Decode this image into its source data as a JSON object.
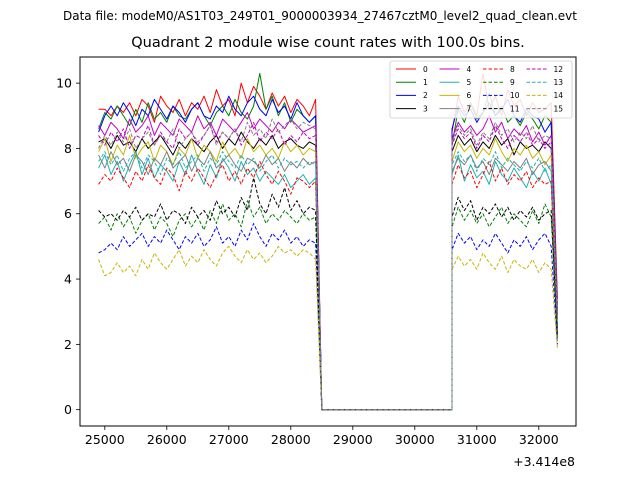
{
  "chart_data": {
    "type": "line",
    "suptitle": "Data file: modeM0/AS1T03_249T01_9000003934_27467cztM0_level2_quad_clean.evt",
    "title": "Quadrant 2 module wise count rates with 100.0s bins.",
    "xlabel": "",
    "ylabel": "",
    "x_offset_label": "+3.414e8",
    "xlim": [
      24600,
      32600
    ],
    "ylim": [
      -0.5,
      10.8
    ],
    "xticks": [
      "25000",
      "26000",
      "27000",
      "28000",
      "29000",
      "30000",
      "31000",
      "32000"
    ],
    "yticks": [
      "0",
      "2",
      "4",
      "6",
      "8",
      "10"
    ],
    "grid": false,
    "legend_position": "top-right",
    "segments": [
      {
        "x_start": 24900,
        "x_end": 28400,
        "n": 36
      },
      {
        "x_start": 30600,
        "x_end": 32300,
        "n": 18
      }
    ],
    "gap": {
      "x_start": 28500,
      "x_end": 30600,
      "value": 0
    },
    "series": [
      {
        "name": "0",
        "color": "#ff0000",
        "dash": "solid",
        "seg1": [
          9.2,
          9.2,
          9.0,
          9.3,
          9.1,
          9.4,
          9.0,
          9.5,
          9.3,
          8.8,
          9.6,
          9.3,
          9.1,
          9.5,
          9.0,
          9.4,
          9.2,
          9.6,
          9.1,
          9.8,
          9.3,
          9.5,
          9.0,
          10.0,
          9.4,
          9.9,
          9.6,
          9.2,
          9.7,
          9.3,
          9.6,
          9.1,
          9.5,
          9.3,
          9.0,
          9.5
        ],
        "seg2": [
          8.5,
          9.6,
          9.1,
          9.4,
          9.0,
          10.3,
          9.2,
          9.6,
          9.0,
          9.8,
          9.3,
          9.5,
          9.0,
          9.4,
          9.1,
          9.2,
          9.4,
          3.4
        ]
      },
      {
        "name": "1",
        "color": "#008000",
        "dash": "solid",
        "seg1": [
          8.6,
          9.1,
          8.9,
          9.3,
          9.0,
          8.7,
          9.2,
          8.8,
          9.4,
          8.9,
          9.1,
          8.8,
          9.3,
          9.0,
          8.9,
          9.2,
          9.4,
          9.0,
          8.7,
          9.1,
          9.3,
          9.0,
          9.5,
          9.1,
          8.9,
          9.3,
          10.3,
          9.2,
          9.6,
          9.0,
          9.4,
          8.8,
          9.2,
          9.0,
          8.8,
          9.0
        ],
        "seg2": [
          8.1,
          9.2,
          8.8,
          9.4,
          8.9,
          9.1,
          9.7,
          9.0,
          9.3,
          8.8,
          9.0,
          8.7,
          9.1,
          8.9,
          8.6,
          9.0,
          8.8,
          3.2
        ]
      },
      {
        "name": "2",
        "color": "#0000ff",
        "dash": "solid",
        "seg1": [
          8.5,
          9.0,
          9.3,
          9.0,
          9.4,
          9.1,
          8.7,
          9.2,
          9.0,
          9.5,
          9.2,
          8.9,
          9.3,
          9.1,
          8.8,
          9.2,
          9.4,
          9.0,
          8.9,
          9.3,
          9.1,
          9.6,
          9.2,
          9.0,
          9.4,
          9.6,
          9.2,
          9.0,
          9.5,
          9.1,
          9.3,
          8.9,
          9.4,
          9.0,
          8.8,
          9.0
        ],
        "seg2": [
          8.6,
          9.3,
          9.0,
          9.2,
          8.8,
          9.1,
          9.4,
          9.0,
          9.2,
          9.5,
          9.0,
          8.8,
          9.2,
          9.0,
          8.9,
          8.5,
          8.8,
          3.0
        ]
      },
      {
        "name": "3",
        "color": "#000000",
        "dash": "solid",
        "seg1": [
          8.2,
          8.3,
          8.0,
          8.4,
          8.1,
          8.2,
          7.9,
          8.3,
          8.0,
          8.2,
          8.4,
          8.1,
          7.8,
          8.2,
          8.0,
          8.3,
          8.1,
          7.9,
          8.2,
          8.4,
          8.0,
          8.3,
          8.1,
          8.5,
          8.2,
          8.0,
          8.3,
          8.1,
          8.4,
          8.0,
          8.2,
          8.3,
          8.1,
          8.0,
          8.2,
          8.1
        ],
        "seg2": [
          7.9,
          8.4,
          8.1,
          8.3,
          7.9,
          8.2,
          8.0,
          8.4,
          8.1,
          8.3,
          7.8,
          8.2,
          8.0,
          8.1,
          7.9,
          8.2,
          8.0,
          2.6
        ]
      },
      {
        "name": "4",
        "color": "#c000c0",
        "dash": "solid",
        "seg1": [
          8.7,
          8.4,
          8.8,
          8.6,
          8.3,
          8.9,
          8.5,
          8.7,
          9.0,
          8.4,
          8.8,
          8.6,
          8.4,
          8.9,
          8.7,
          8.5,
          9.0,
          8.6,
          8.8,
          8.4,
          8.9,
          8.7,
          8.5,
          8.8,
          9.1,
          8.6,
          8.9,
          8.7,
          8.5,
          8.8,
          8.6,
          8.9,
          8.7,
          8.5,
          8.6,
          8.7
        ],
        "seg2": [
          8.3,
          8.8,
          8.5,
          8.7,
          8.4,
          8.6,
          9.0,
          8.5,
          8.8,
          8.3,
          8.6,
          8.4,
          8.7,
          8.2,
          8.5,
          8.1,
          8.4,
          2.9
        ]
      },
      {
        "name": "5",
        "color": "#20b0b0",
        "dash": "solid",
        "seg1": [
          7.4,
          7.8,
          7.2,
          7.6,
          7.0,
          7.5,
          7.9,
          7.2,
          7.7,
          7.1,
          7.5,
          7.3,
          7.0,
          7.6,
          7.2,
          7.8,
          7.3,
          6.9,
          7.5,
          7.1,
          7.7,
          7.4,
          7.0,
          7.6,
          7.2,
          7.4,
          7.0,
          7.3,
          7.1,
          6.9,
          7.2,
          6.8,
          7.0,
          7.2,
          6.9,
          7.1
        ],
        "seg2": [
          7.2,
          7.8,
          7.0,
          7.5,
          7.1,
          7.3,
          6.9,
          7.6,
          7.2,
          7.0,
          7.4,
          7.1,
          6.8,
          7.3,
          7.0,
          7.4,
          6.9,
          2.5
        ]
      },
      {
        "name": "6",
        "color": "#c8b400",
        "dash": "solid",
        "seg1": [
          7.9,
          8.3,
          7.6,
          8.1,
          7.8,
          8.4,
          7.7,
          8.0,
          8.2,
          7.6,
          8.1,
          7.9,
          7.5,
          8.0,
          7.8,
          8.3,
          7.7,
          8.1,
          7.9,
          7.6,
          8.2,
          7.8,
          8.0,
          7.7,
          8.3,
          7.9,
          8.1,
          7.8,
          8.0,
          7.7,
          8.2,
          7.9,
          8.1,
          7.8,
          8.0,
          7.9
        ],
        "seg2": [
          7.6,
          8.2,
          7.9,
          8.1,
          7.7,
          8.0,
          7.8,
          8.3,
          7.9,
          7.6,
          8.0,
          7.8,
          8.1,
          7.7,
          7.9,
          7.5,
          7.8,
          2.7
        ]
      },
      {
        "name": "7",
        "color": "#808080",
        "dash": "solid",
        "seg1": [
          7.8,
          7.4,
          7.9,
          7.5,
          7.7,
          7.3,
          7.8,
          7.6,
          7.2,
          7.7,
          7.5,
          7.9,
          7.4,
          7.6,
          7.8,
          7.3,
          7.7,
          7.5,
          7.9,
          7.4,
          7.6,
          7.8,
          7.5,
          7.3,
          7.7,
          7.6,
          7.4,
          7.8,
          7.5,
          7.7,
          7.3,
          7.6,
          7.4,
          7.7,
          7.5,
          7.6
        ],
        "seg2": [
          7.3,
          7.7,
          7.5,
          7.8,
          7.4,
          7.6,
          7.2,
          7.7,
          7.5,
          7.3,
          7.6,
          7.4,
          7.7,
          7.2,
          7.5,
          7.6,
          7.3,
          2.8
        ]
      },
      {
        "name": "8",
        "color": "#ff0000",
        "dash": "dashed",
        "seg1": [
          6.9,
          7.2,
          7.0,
          7.4,
          7.1,
          6.8,
          7.3,
          7.0,
          7.5,
          7.1,
          6.9,
          7.4,
          7.2,
          6.7,
          7.3,
          7.0,
          7.4,
          7.1,
          6.8,
          7.2,
          7.5,
          7.0,
          7.3,
          6.9,
          7.4,
          7.1,
          7.6,
          7.2,
          6.9,
          7.3,
          7.0,
          6.6,
          7.1,
          7.0,
          6.8,
          7.0
        ],
        "seg2": [
          6.9,
          7.5,
          7.1,
          7.3,
          6.8,
          7.2,
          7.6,
          7.0,
          7.4,
          6.9,
          7.2,
          7.0,
          7.3,
          6.8,
          7.1,
          6.9,
          7.0,
          2.4
        ]
      },
      {
        "name": "9",
        "color": "#008000",
        "dash": "dashed",
        "seg1": [
          5.7,
          5.9,
          5.5,
          6.0,
          5.6,
          5.9,
          5.4,
          5.8,
          6.0,
          5.5,
          5.9,
          5.7,
          5.3,
          5.8,
          6.0,
          5.6,
          5.9,
          5.5,
          6.1,
          5.7,
          6.3,
          5.8,
          6.0,
          5.6,
          6.4,
          5.9,
          6.2,
          5.7,
          6.0,
          5.8,
          6.1,
          5.9,
          5.7,
          6.0,
          5.8,
          5.9
        ],
        "seg2": [
          5.6,
          6.2,
          5.8,
          6.1,
          5.7,
          6.0,
          5.6,
          5.9,
          6.2,
          5.7,
          6.0,
          5.8,
          5.6,
          6.1,
          5.7,
          6.3,
          5.9,
          2.2
        ]
      },
      {
        "name": "10",
        "color": "#0000ff",
        "dash": "dashed",
        "seg1": [
          4.8,
          4.9,
          5.1,
          4.9,
          5.3,
          5.0,
          5.2,
          5.4,
          5.0,
          5.3,
          5.1,
          5.5,
          5.2,
          4.9,
          5.3,
          5.1,
          5.4,
          5.0,
          5.2,
          5.6,
          5.1,
          5.3,
          5.0,
          5.5,
          5.2,
          5.7,
          5.3,
          5.0,
          5.4,
          5.2,
          5.5,
          5.1,
          5.3,
          5.0,
          5.2,
          5.1
        ],
        "seg2": [
          4.9,
          5.4,
          5.1,
          5.3,
          4.9,
          5.2,
          5.0,
          5.4,
          5.1,
          4.8,
          5.2,
          5.0,
          5.3,
          4.9,
          5.2,
          5.4,
          5.0,
          2.0
        ]
      },
      {
        "name": "11",
        "color": "#000000",
        "dash": "dashed",
        "seg1": [
          6.1,
          5.9,
          6.0,
          5.8,
          6.1,
          5.9,
          6.2,
          5.8,
          6.0,
          5.9,
          6.3,
          5.8,
          6.1,
          6.0,
          5.7,
          6.2,
          5.9,
          6.1,
          5.8,
          6.4,
          6.0,
          6.2,
          5.9,
          6.5,
          6.1,
          7.1,
          6.3,
          6.0,
          6.6,
          6.2,
          6.8,
          6.1,
          6.4,
          6.0,
          6.2,
          6.1
        ],
        "seg2": [
          5.9,
          6.5,
          6.1,
          6.4,
          5.8,
          6.2,
          6.0,
          6.3,
          5.9,
          6.2,
          5.8,
          6.1,
          5.9,
          6.2,
          5.8,
          6.0,
          6.1,
          2.3
        ]
      },
      {
        "name": "12",
        "color": "#c000c0",
        "dash": "dashed",
        "seg1": [
          8.4,
          8.1,
          8.5,
          8.2,
          8.6,
          8.0,
          8.4,
          8.3,
          8.7,
          8.1,
          8.5,
          8.2,
          8.0,
          8.6,
          8.3,
          8.5,
          8.1,
          8.4,
          8.7,
          8.2,
          8.5,
          8.3,
          8.6,
          8.1,
          8.4,
          8.8,
          8.2,
          8.5,
          8.3,
          8.6,
          8.1,
          8.4,
          8.2,
          8.5,
          8.3,
          8.4
        ],
        "seg2": [
          8.1,
          8.6,
          8.3,
          8.5,
          8.0,
          8.4,
          8.2,
          8.7,
          8.3,
          8.0,
          8.4,
          8.2,
          8.5,
          8.1,
          8.3,
          8.0,
          8.2,
          2.9
        ]
      },
      {
        "name": "13",
        "color": "#20b0b0",
        "dash": "dashed",
        "seg1": [
          7.6,
          7.9,
          7.5,
          7.8,
          7.3,
          7.7,
          7.9,
          7.4,
          7.8,
          7.6,
          7.2,
          7.7,
          7.5,
          7.9,
          7.4,
          7.6,
          7.8,
          7.3,
          7.7,
          7.5,
          7.9,
          7.6,
          7.4,
          7.8,
          7.5,
          7.7,
          7.3,
          7.6,
          7.8,
          7.4,
          7.7,
          7.5,
          7.6,
          7.4,
          7.6,
          7.5
        ],
        "seg2": [
          7.5,
          7.9,
          7.6,
          7.8,
          7.3,
          7.7,
          7.5,
          7.9,
          7.4,
          7.7,
          7.5,
          7.3,
          7.6,
          7.4,
          7.7,
          7.3,
          7.5,
          2.6
        ]
      },
      {
        "name": "14",
        "color": "#c8b400",
        "dash": "dashed",
        "seg1": [
          4.6,
          4.1,
          4.2,
          4.5,
          4.2,
          4.4,
          4.1,
          4.6,
          4.3,
          4.8,
          4.5,
          4.3,
          4.6,
          4.9,
          4.4,
          4.7,
          4.5,
          4.9,
          4.6,
          4.4,
          4.8,
          5.0,
          4.7,
          4.5,
          4.9,
          4.6,
          4.8,
          4.5,
          4.7,
          5.0,
          4.8,
          4.9,
          4.7,
          4.9,
          4.8,
          4.6
        ],
        "seg2": [
          4.3,
          4.7,
          4.4,
          4.6,
          4.3,
          4.8,
          4.5,
          4.3,
          4.7,
          4.2,
          4.6,
          4.4,
          4.3,
          4.6,
          4.2,
          4.5,
          4.3,
          1.9
        ]
      },
      {
        "name": "15",
        "color": "#808080",
        "dash": "dashed",
        "seg1": [
          8.0,
          8.4,
          8.1,
          8.5,
          8.2,
          8.6,
          8.0,
          8.3,
          8.5,
          8.1,
          8.4,
          8.2,
          8.6,
          8.0,
          8.3,
          8.5,
          8.2,
          8.4,
          8.7,
          8.1,
          8.5,
          8.3,
          8.6,
          8.2,
          8.8,
          8.4,
          8.6,
          8.3,
          8.9,
          8.5,
          8.7,
          8.9,
          8.6,
          8.8,
          8.7,
          8.6
        ],
        "seg2": [
          8.2,
          8.7,
          8.4,
          8.6,
          8.1,
          8.5,
          8.3,
          8.8,
          8.4,
          8.6,
          8.2,
          8.5,
          8.3,
          8.7,
          8.2,
          8.4,
          8.3,
          2.8
        ]
      }
    ]
  }
}
